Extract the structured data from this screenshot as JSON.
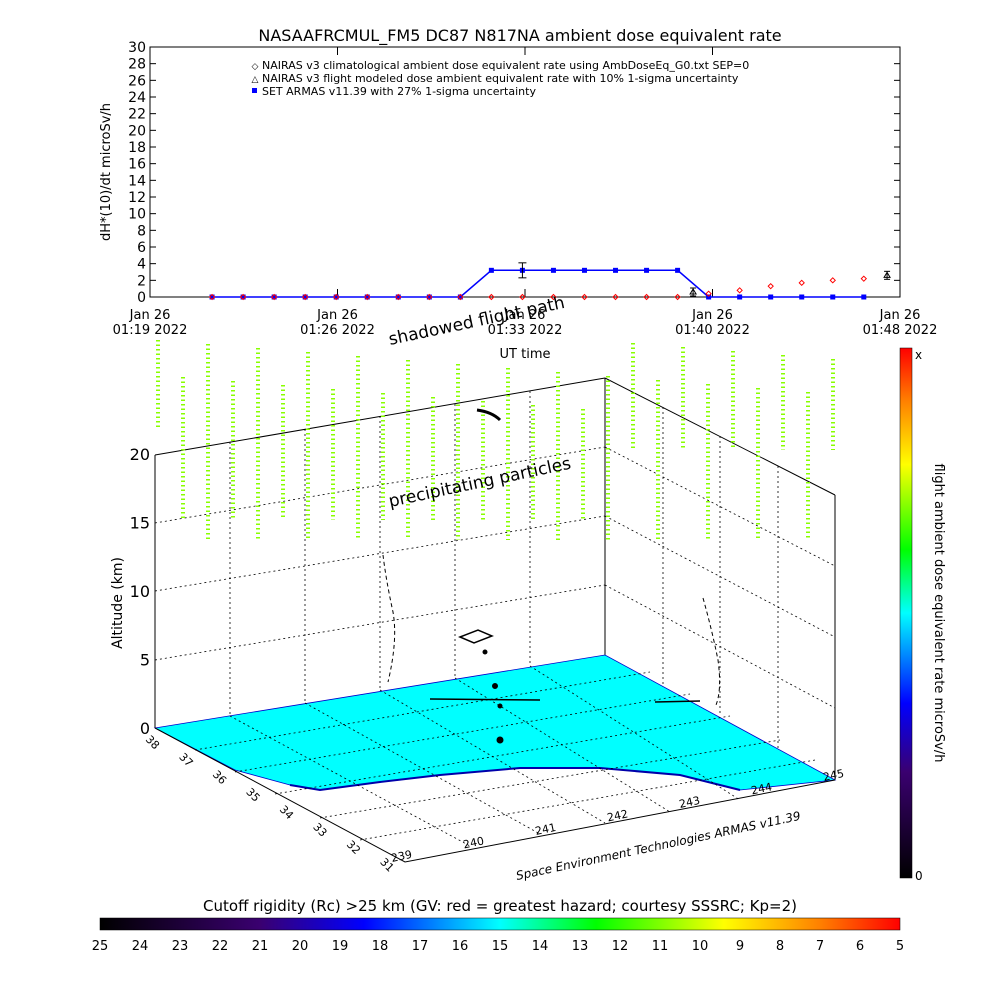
{
  "top_chart": {
    "title": "NASAAFRCMUL_FM5 DC87 N817NA ambient dose equivalent rate",
    "ylabel": "dH*(10)/dt microSv/h",
    "xlabel": "UT time",
    "y_ticks": [
      "0",
      "2",
      "4",
      "6",
      "8",
      "10",
      "12",
      "14",
      "16",
      "18",
      "20",
      "22",
      "24",
      "26",
      "28",
      "30"
    ],
    "x_ticks": [
      {
        "day": "Jan 26",
        "time": "01:19 2022"
      },
      {
        "day": "Jan 26",
        "time": "01:26 2022"
      },
      {
        "day": "Jan 26",
        "time": "01:33 2022"
      },
      {
        "day": "Jan 26",
        "time": "01:40 2022"
      },
      {
        "day": "Jan 26",
        "time": "01:48 2022"
      }
    ],
    "legend": [
      "NAIRAS v3 climatological ambient dose equivalent rate using AmbDoseEq_G0.txt SEP=0",
      "NAIRAS v3 flight modeled dose ambient equivalent rate with 10% 1-sigma uncertainty",
      "SET ARMAS v11.39 with 27% 1-sigma uncertainty"
    ]
  },
  "scene": {
    "label_shadowed": "shadowed flight path",
    "label_precip": "precipitating particles",
    "z_label": "Altitude (km)",
    "z_ticks": [
      "0",
      "5",
      "10",
      "15",
      "20"
    ],
    "lat_ticks": [
      "38",
      "37",
      "36",
      "35",
      "34",
      "33",
      "32",
      "31"
    ],
    "lon_ticks": [
      "239",
      "240",
      "241",
      "242",
      "243",
      "244",
      "245"
    ],
    "credit": "Space Environment Technologies ARMAS v11.39"
  },
  "colorbar_right": {
    "label": "flight ambient dose equivalent rate microSv/h",
    "top_label": "x",
    "bottom_label": "0"
  },
  "colorbar_bottom": {
    "title": "Cutoff rigidity (Rc) >25 km (GV: red = greatest hazard; courtesy SSSRC; Kp=2)",
    "ticks": [
      "25",
      "24",
      "23",
      "22",
      "21",
      "20",
      "19",
      "18",
      "17",
      "16",
      "15",
      "14",
      "13",
      "12",
      "11",
      "10",
      "9",
      "8",
      "7",
      "6",
      "5"
    ]
  },
  "colors": {
    "armas": "#0000ff",
    "climatological": "#ff0000",
    "modeled": "#000000",
    "ground": "#00ffff",
    "precip": "#88ff00"
  },
  "chart_data": {
    "type": "line",
    "title": "NASAAFRCMUL_FM5 DC87 N817NA ambient dose equivalent rate",
    "xlabel": "UT time",
    "ylabel": "dH*(10)/dt microSv/h",
    "ylim": [
      0,
      30
    ],
    "x_ticks": [
      "Jan 26 01:19 2022",
      "Jan 26 01:26 2022",
      "Jan 26 01:33 2022",
      "Jan 26 01:40 2022",
      "Jan 26 01:48 2022"
    ],
    "series": [
      {
        "name": "SET ARMAS v11.39 with 27% 1-sigma uncertainty",
        "x": [
          "01:21:24",
          "01:22:36",
          "01:23:48",
          "01:25:00",
          "01:26:12",
          "01:27:24",
          "01:28:36",
          "01:29:48",
          "01:31:00",
          "01:32:12",
          "01:33:24",
          "01:34:36",
          "01:35:48",
          "01:37:00",
          "01:38:12",
          "01:39:24",
          "01:40:36",
          "01:41:48",
          "01:43:00",
          "01:44:12",
          "01:45:24",
          "01:46:36"
        ],
        "values": [
          0,
          0,
          0,
          0,
          0,
          0,
          0,
          0,
          0,
          3.2,
          3.2,
          3.2,
          3.2,
          3.2,
          3.2,
          3.2,
          0,
          0,
          0,
          0,
          0,
          0
        ]
      },
      {
        "name": "NAIRAS v3 climatological ambient dose equivalent rate using AmbDoseEq_G0.txt SEP=0",
        "x": [
          "01:21:24",
          "01:22:36",
          "01:23:48",
          "01:25:00",
          "01:26:12",
          "01:27:24",
          "01:28:36",
          "01:29:48",
          "01:31:00",
          "01:32:12",
          "01:33:24",
          "01:34:36",
          "01:35:48",
          "01:37:00",
          "01:38:12",
          "01:39:24",
          "01:40:36",
          "01:41:48",
          "01:43:00",
          "01:44:12",
          "01:45:24",
          "01:46:36"
        ],
        "values": [
          0,
          0,
          0,
          0,
          0,
          0,
          0,
          0,
          0,
          0,
          0,
          0,
          0,
          0,
          0,
          0,
          0.4,
          0.8,
          1.3,
          1.7,
          2.0,
          2.2
        ]
      },
      {
        "name": "NAIRAS v3 flight modeled dose ambient equivalent rate with 10% 1-sigma uncertainty",
        "x": [
          "01:40:00",
          "01:47:30"
        ],
        "values": [
          0.6,
          2.6
        ]
      }
    ]
  }
}
